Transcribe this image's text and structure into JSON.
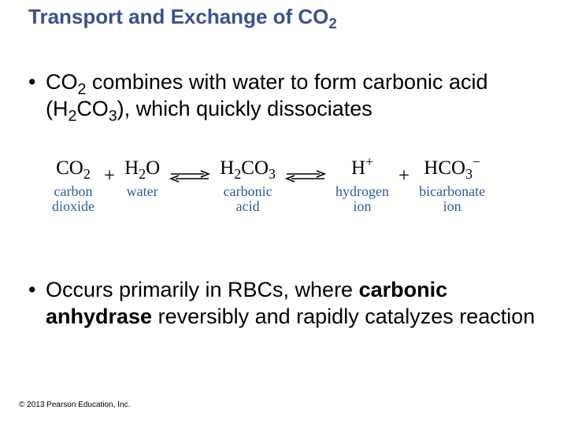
{
  "title": {
    "text": "Transport and Exchange of CO",
    "sub": "2",
    "color": "#3a528b",
    "fontsize": 26
  },
  "bullet1": {
    "part1": "CO",
    "sub1": "2",
    "part2": " combines with water to form carbonic acid (H",
    "sub2": "2",
    "part3": "CO",
    "sub3": "3",
    "part4": "), which quickly dissociates"
  },
  "equation": {
    "terms": [
      {
        "formula": "CO",
        "sub": "2",
        "label_l1": "carbon",
        "label_l2": "dioxide"
      },
      {
        "op": "+"
      },
      {
        "formula": "H",
        "sub": "2",
        "formula2": "O",
        "label_l1": "water",
        "label_l2": ""
      },
      {
        "arrow": true
      },
      {
        "formula": "H",
        "sub": "2",
        "formula2": "CO",
        "sub2": "3",
        "label_l1": "carbonic",
        "label_l2": "acid"
      },
      {
        "arrow": true
      },
      {
        "formula": "H",
        "sup": "+",
        "label_l1": "hydrogen",
        "label_l2": "ion"
      },
      {
        "op": "+"
      },
      {
        "formula": "HCO",
        "sub": "3",
        "sup": "−",
        "label_l1": "bicarbonate",
        "label_l2": "ion"
      }
    ],
    "label_color": "#2e5b9a",
    "arrow_color": "#000000"
  },
  "bullet2": {
    "part1": "Occurs primarily in RBCs, where ",
    "bold1": "carbonic anhydrase",
    "part2": " reversibly and rapidly catalyzes reaction"
  },
  "copyright": "© 2013 Pearson Education, Inc.",
  "body_fontsize": 27
}
